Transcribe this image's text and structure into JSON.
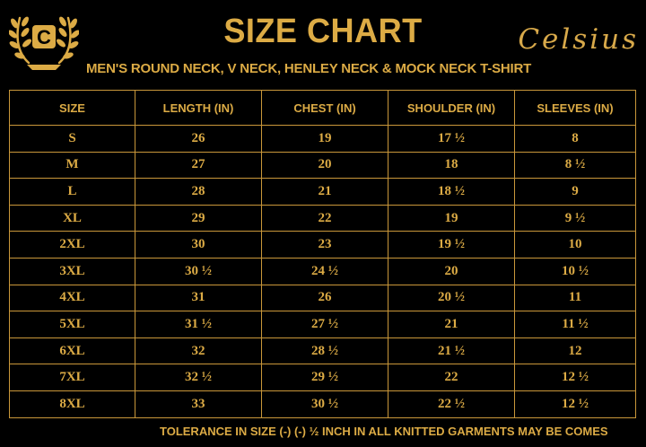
{
  "header": {
    "logo_letter": "C",
    "title": "SIZE CHART",
    "brand": "Celsius",
    "subtitle": "MEN'S ROUND NECK, V NECK, HENLEY NECK & MOCK NECK T-SHIRT"
  },
  "colors": {
    "gold": "#dcab45",
    "background": "#000000"
  },
  "table": {
    "columns": [
      "SIZE",
      "LENGTH (IN)",
      "CHEST (IN)",
      "SHOULDER (IN)",
      "SLEEVES (IN)"
    ],
    "rows": [
      [
        "S",
        "26",
        "19",
        "17 ½",
        "8"
      ],
      [
        "M",
        "27",
        "20",
        "18",
        "8 ½"
      ],
      [
        "L",
        "28",
        "21",
        "18 ½",
        "9"
      ],
      [
        "XL",
        "29",
        "22",
        "19",
        "9 ½"
      ],
      [
        "2XL",
        "30",
        "23",
        "19 ½",
        "10"
      ],
      [
        "3XL",
        "30 ½",
        "24 ½",
        "20",
        "10 ½"
      ],
      [
        "4XL",
        "31",
        "26",
        "20 ½",
        "11"
      ],
      [
        "5XL",
        "31 ½",
        "27 ½",
        "21",
        "11 ½"
      ],
      [
        "6XL",
        "32",
        "28 ½",
        "21 ½",
        "12"
      ],
      [
        "7XL",
        "32 ½",
        "29 ½",
        "22",
        "12 ½"
      ],
      [
        "8XL",
        "33",
        "30 ½",
        "22 ½",
        "12 ½"
      ]
    ]
  },
  "footer": "TOLERANCE IN SIZE (-) (-)  ½ INCH IN ALL KNITTED GARMENTS MAY BE COMES"
}
